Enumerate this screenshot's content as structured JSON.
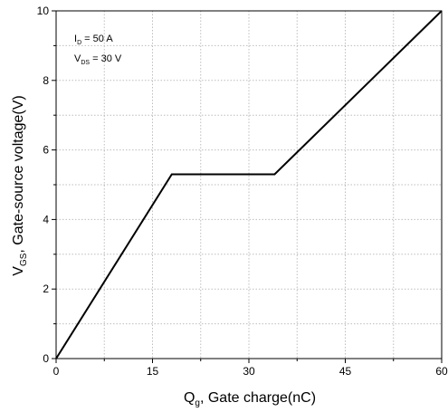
{
  "chart_data": {
    "type": "line",
    "title": "",
    "xlabel": {
      "main": "Q",
      "sub": "g",
      "rest": ", Gate charge(nC)"
    },
    "ylabel": {
      "main": "V",
      "sub": "GS",
      "rest": ", Gate-source voltage(V)"
    },
    "xlim": [
      0,
      60
    ],
    "ylim": [
      0,
      10
    ],
    "xticks": [
      0,
      15,
      30,
      45,
      60
    ],
    "xtick_labels": [
      "0",
      "15",
      "30",
      "45",
      "60"
    ],
    "yticks": [
      0,
      2,
      4,
      6,
      8,
      10
    ],
    "ytick_labels": [
      "0",
      "2",
      "4",
      "6",
      "8",
      "10"
    ],
    "grid": true,
    "annotations": [
      {
        "main": "I",
        "sub": "D",
        "rest": " = 50 A"
      },
      {
        "main": "V",
        "sub": "DS",
        "rest": " = 30 V"
      }
    ],
    "series": [
      {
        "x": [
          0,
          18,
          34,
          60
        ],
        "y": [
          0,
          5.3,
          5.3,
          10
        ],
        "color": "#000000"
      }
    ]
  }
}
